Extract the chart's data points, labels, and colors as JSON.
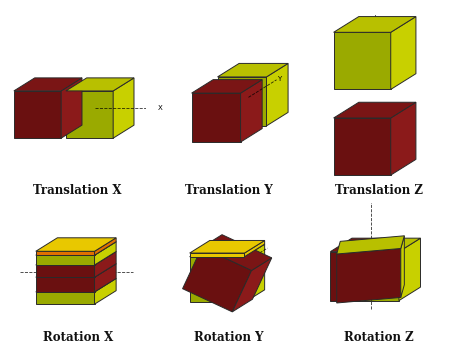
{
  "background_color": "#ffffff",
  "labels": [
    "Translation X",
    "Translation Y",
    "Translation Z",
    "Rotation X",
    "Rotation Y",
    "Rotation Z"
  ],
  "label_fontsize": 8.5,
  "label_fontweight": "bold",
  "dark_top": "#7A1515",
  "dark_front": "#6A1010",
  "dark_right": "#8B1A1A",
  "dark_left": "#5C0E0E",
  "light_top": "#B8C000",
  "light_front": "#9AAA00",
  "light_right": "#C8D000",
  "light_left": "#A0B000",
  "orange": "#E07000",
  "yellow": "#E8C800",
  "red_orange": "#CC4400",
  "figsize": [
    4.57,
    3.5
  ],
  "dpi": 100
}
